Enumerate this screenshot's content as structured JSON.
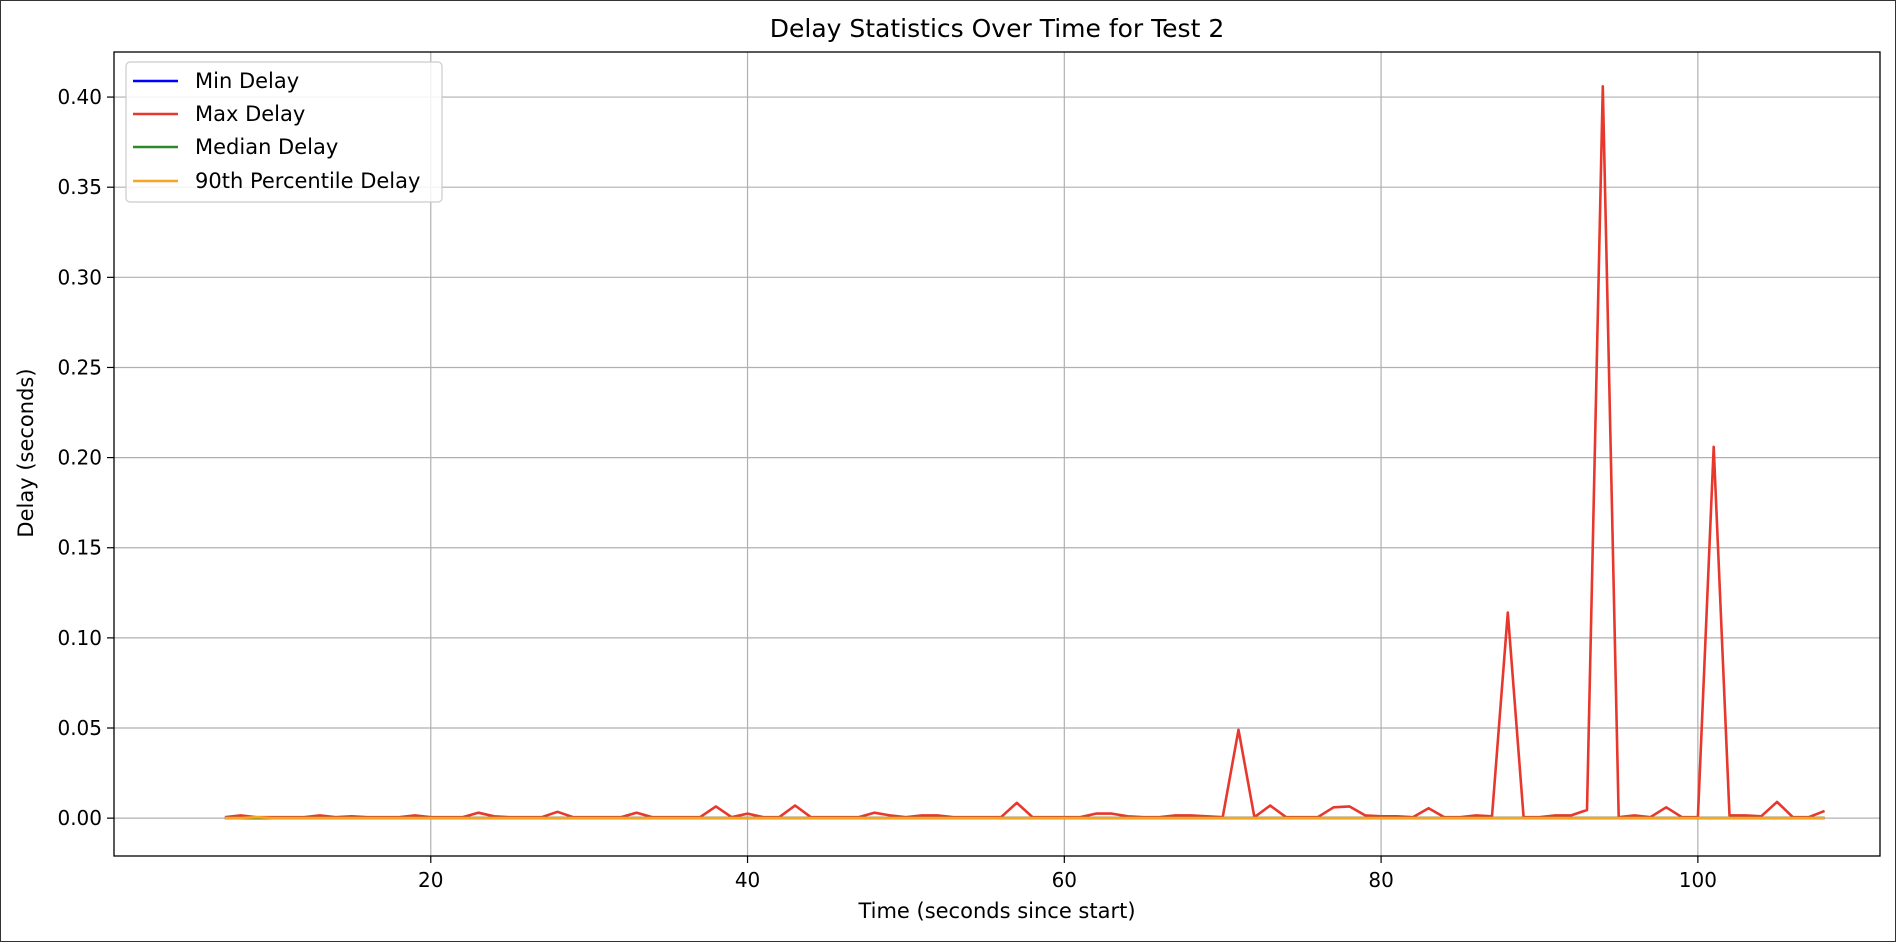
{
  "chart_data": {
    "type": "line",
    "title": "Delay Statistics Over Time for Test 2",
    "xlabel": "Time (seconds since start)",
    "ylabel": "Delay (seconds)",
    "xlim": [
      0,
      111.5
    ],
    "ylim": [
      -0.021,
      0.425
    ],
    "xticks": [
      20,
      40,
      60,
      80,
      100
    ],
    "xtick_labels": [
      "20",
      "40",
      "60",
      "80",
      "100"
    ],
    "yticks": [
      0.0,
      0.05,
      0.1,
      0.15,
      0.2,
      0.25,
      0.3,
      0.35,
      0.4
    ],
    "ytick_labels": [
      "0.00",
      "0.05",
      "0.10",
      "0.15",
      "0.20",
      "0.25",
      "0.30",
      "0.35",
      "0.40"
    ],
    "grid": true,
    "legend_position": "top-left",
    "x": [
      7,
      8,
      9,
      10,
      11,
      12,
      13,
      14,
      15,
      16,
      17,
      18,
      19,
      20,
      21,
      22,
      23,
      24,
      25,
      26,
      27,
      28,
      29,
      30,
      31,
      32,
      33,
      34,
      35,
      36,
      37,
      38,
      39,
      40,
      41,
      42,
      43,
      44,
      45,
      46,
      47,
      48,
      49,
      50,
      51,
      52,
      53,
      54,
      55,
      56,
      57,
      58,
      59,
      60,
      61,
      62,
      63,
      64,
      65,
      66,
      67,
      68,
      69,
      70,
      71,
      72,
      73,
      74,
      75,
      76,
      77,
      78,
      79,
      80,
      81,
      82,
      83,
      84,
      85,
      86,
      87,
      88,
      89,
      90,
      91,
      92,
      93,
      94,
      95,
      96,
      97,
      98,
      99,
      100,
      101,
      102,
      103,
      104,
      105,
      106,
      107,
      108
    ],
    "series": [
      {
        "name": "Min Delay",
        "color": "#0000ff",
        "values": [
          0,
          0,
          0,
          0,
          0,
          0,
          0,
          0,
          0,
          0,
          0,
          0,
          0,
          0,
          0,
          0,
          0,
          0,
          0,
          0,
          0,
          0,
          0,
          0,
          0,
          0,
          0,
          0,
          0,
          0,
          0,
          0,
          0,
          0,
          0,
          0,
          0,
          0,
          0,
          0,
          0,
          0,
          0,
          0,
          0,
          0,
          0,
          0,
          0,
          0,
          0,
          0,
          0,
          0,
          0,
          0,
          0,
          0,
          0,
          0,
          0,
          0,
          0,
          0,
          0,
          0,
          0,
          0,
          0,
          0,
          0,
          0,
          0,
          0,
          0,
          0,
          0,
          0,
          0,
          0,
          0,
          0,
          0,
          0,
          0,
          0,
          0,
          0,
          0,
          0,
          0,
          0,
          0,
          0,
          0,
          0,
          0,
          0,
          0,
          0,
          0,
          0
        ]
      },
      {
        "name": "Max Delay",
        "color": "#e8382d",
        "values": [
          0.0005,
          0.0015,
          0.0005,
          0.0005,
          0.0005,
          0.0005,
          0.0015,
          0.0005,
          0.001,
          0.0005,
          0.0005,
          0.0005,
          0.0015,
          0.0005,
          0.0005,
          0.0005,
          0.003,
          0.001,
          0.0005,
          0.0005,
          0.0005,
          0.0035,
          0.0005,
          0.0005,
          0.0005,
          0.0005,
          0.003,
          0.0005,
          0.0005,
          0.0005,
          0.0005,
          0.0065,
          0.0005,
          0.0025,
          0.0005,
          0.0005,
          0.007,
          0.0005,
          0.0005,
          0.0005,
          0.0005,
          0.003,
          0.0015,
          0.0005,
          0.0015,
          0.0015,
          0.0005,
          0.0005,
          0.0005,
          0.0005,
          0.0085,
          0.0005,
          0.0005,
          0.0005,
          0.0005,
          0.0025,
          0.0025,
          0.001,
          0.0005,
          0.0005,
          0.0015,
          0.0015,
          0.001,
          0.0005,
          0.049,
          0.0005,
          0.007,
          0.0005,
          0.0005,
          0.0005,
          0.006,
          0.0065,
          0.0015,
          0.001,
          0.001,
          0.0005,
          0.0055,
          0.0005,
          0.0005,
          0.0015,
          0.001,
          0.114,
          0.0005,
          0.0005,
          0.0015,
          0.0015,
          0.0045,
          0.406,
          0.0005,
          0.0015,
          0.0005,
          0.006,
          0.0005,
          0.0005,
          0.206,
          0.0015,
          0.0015,
          0.001,
          0.009,
          0.0005,
          0.0005,
          0.004
        ]
      },
      {
        "name": "Median Delay",
        "color": "#2a8a2a",
        "values": [
          0,
          0,
          0,
          0,
          0,
          0,
          0,
          0,
          0,
          0,
          0,
          0,
          0,
          0,
          0,
          0,
          0,
          0,
          0,
          0,
          0,
          0,
          0,
          0,
          0,
          0,
          0,
          0,
          0,
          0,
          0,
          0,
          0,
          0,
          0,
          0,
          0,
          0,
          0,
          0,
          0,
          0,
          0,
          0,
          0,
          0,
          0,
          0,
          0,
          0,
          0,
          0,
          0,
          0,
          0,
          0,
          0,
          0,
          0,
          0,
          0,
          0,
          0,
          0,
          0,
          0,
          0,
          0,
          0,
          0,
          0,
          0,
          0,
          0,
          0,
          0,
          0,
          0,
          0,
          0,
          0,
          0,
          0,
          0,
          0,
          0,
          0,
          0,
          0,
          0,
          0,
          0,
          0,
          0,
          0,
          0,
          0,
          0,
          0,
          0,
          0,
          0
        ]
      },
      {
        "name": "90th Percentile Delay",
        "color": "#f5a623",
        "values": [
          0,
          0,
          0.0005,
          0,
          0,
          0,
          0,
          0,
          0,
          0,
          0,
          0,
          0,
          0,
          0,
          0,
          0,
          0,
          0,
          0,
          0,
          0,
          0,
          0,
          0,
          0,
          0,
          0,
          0,
          0,
          0,
          0,
          0,
          0,
          0,
          0,
          0,
          0,
          0,
          0,
          0,
          0,
          0,
          0,
          0,
          0,
          0,
          0,
          0,
          0,
          0,
          0,
          0,
          0,
          0,
          0,
          0,
          0,
          0,
          0,
          0,
          0,
          0,
          0,
          0,
          0,
          0,
          0,
          0,
          0,
          0,
          0,
          0,
          0,
          0,
          0,
          0,
          0,
          0,
          0,
          0,
          0,
          0,
          0,
          0,
          0,
          0,
          0,
          0,
          0,
          0,
          0,
          0,
          0,
          0,
          0,
          0,
          0,
          0,
          0,
          0,
          0
        ]
      }
    ]
  }
}
